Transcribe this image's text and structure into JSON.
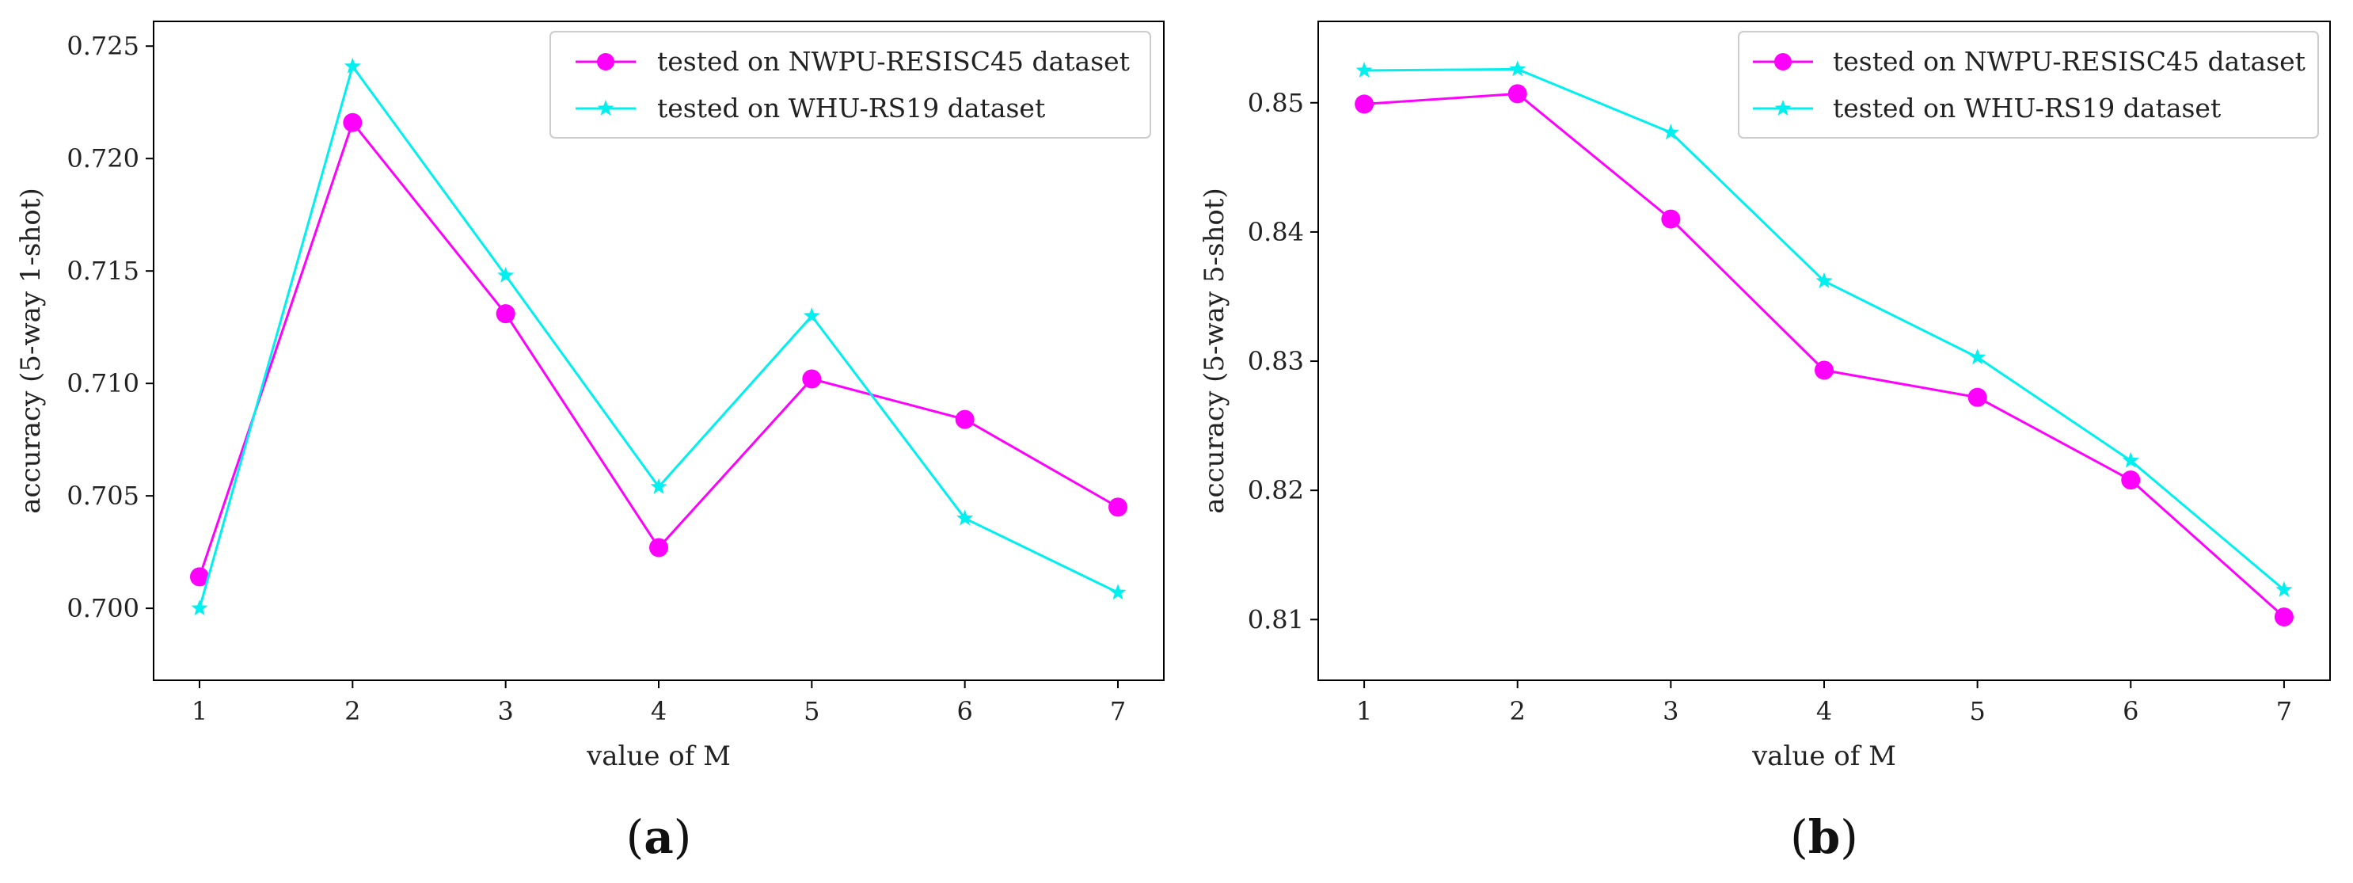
{
  "colors": {
    "nwpu": "#ff00ff",
    "whu": "#00f0f0",
    "axis": "#000000",
    "legend_border": "#cccccc"
  },
  "chart_data": [
    {
      "type": "line",
      "panel_label_open": "(",
      "panel_label_letter": "a",
      "panel_label_close": ")",
      "xlabel": "value of M",
      "ylabel": "accuracy (5-way 1-shot)",
      "x": [
        1,
        2,
        3,
        4,
        5,
        6,
        7
      ],
      "xlim": [
        0.7,
        7.3
      ],
      "ylim": [
        0.6968,
        0.7261
      ],
      "yticks": [
        0.7,
        0.705,
        0.71,
        0.715,
        0.72,
        0.725
      ],
      "ytick_labels": [
        "0.700",
        "0.705",
        "0.710",
        "0.715",
        "0.720",
        "0.725"
      ],
      "legend_position": "top-right",
      "series": [
        {
          "name": "tested on NWPU-RESISC45 dataset",
          "marker": "circle",
          "color_key": "nwpu",
          "values": [
            0.7014,
            0.7216,
            0.7131,
            0.7027,
            0.7102,
            0.7084,
            0.7045
          ]
        },
        {
          "name": "tested on WHU-RS19 dataset",
          "marker": "star",
          "color_key": "whu",
          "values": [
            0.7,
            0.7241,
            0.7148,
            0.7054,
            0.713,
            0.704,
            0.7007
          ]
        }
      ]
    },
    {
      "type": "line",
      "panel_label_open": "(",
      "panel_label_letter": "b",
      "panel_label_close": ")",
      "xlabel": "value of M",
      "ylabel": "accuracy (5-way 5-shot)",
      "x": [
        1,
        2,
        3,
        4,
        5,
        6,
        7
      ],
      "xlim": [
        0.7,
        7.3
      ],
      "ylim": [
        0.8053,
        0.8563
      ],
      "yticks": [
        0.81,
        0.82,
        0.83,
        0.84,
        0.85
      ],
      "ytick_labels": [
        "0.81",
        "0.82",
        "0.83",
        "0.84",
        "0.85"
      ],
      "legend_position": "top-right",
      "series": [
        {
          "name": "tested on NWPU-RESISC45 dataset",
          "marker": "circle",
          "color_key": "nwpu",
          "values": [
            0.8499,
            0.8507,
            0.841,
            0.8293,
            0.8272,
            0.8208,
            0.8102
          ]
        },
        {
          "name": "tested on WHU-RS19 dataset",
          "marker": "star",
          "color_key": "whu",
          "values": [
            0.8525,
            0.8526,
            0.8477,
            0.8362,
            0.8303,
            0.8223,
            0.8123
          ]
        }
      ]
    }
  ]
}
